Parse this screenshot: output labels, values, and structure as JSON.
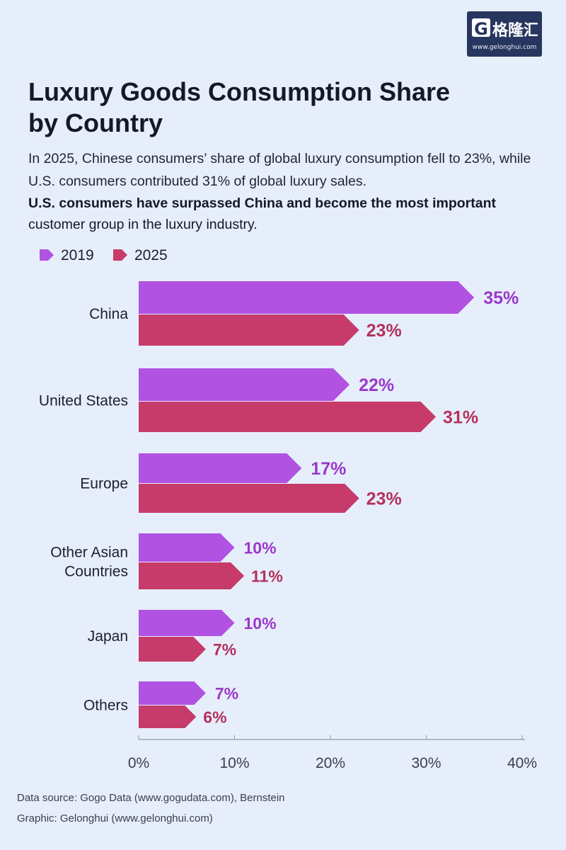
{
  "logo": {
    "mark": "G",
    "text": "格隆汇",
    "url": "www.gelonghui.com"
  },
  "chart_data": {
    "type": "bar",
    "orientation": "horizontal",
    "title": "Luxury Goods Consumption Share by Country",
    "subtitle": "In 2025, Chinese consumers’ share of global luxury consumption fell to 23%, while U.S. consumers contributed 31% of global luxury sales.",
    "subtitle2_bold": "U.S. consumers have surpassed China and become the most important",
    "subtitle2_rest": "customer group in the luxury industry.",
    "categories": [
      "China",
      "United States",
      "Europe",
      "Other Asian Countries",
      "Japan",
      "Others"
    ],
    "series": [
      {
        "name": "2019",
        "color": "#b152e2",
        "label_color": "#9b38c9",
        "values": [
          35,
          22,
          17,
          10,
          10,
          7
        ]
      },
      {
        "name": "2025",
        "color": "#c63b69",
        "label_color": "#b5305c",
        "values": [
          23,
          31,
          23,
          11,
          7,
          6
        ]
      }
    ],
    "value_suffix": "%",
    "xlim": [
      0,
      40
    ],
    "xticks": [
      0,
      10,
      20,
      30,
      40
    ],
    "xtick_labels": [
      "0%",
      "10%",
      "20%",
      "30%",
      "40%"
    ],
    "legend_position": "top-left",
    "grid": false
  },
  "footer": {
    "source": "Data source: Gogo Data (www.gogudata.com), Bernstein",
    "graphic": "Graphic: Gelonghui (www.gelonghui.com)"
  }
}
